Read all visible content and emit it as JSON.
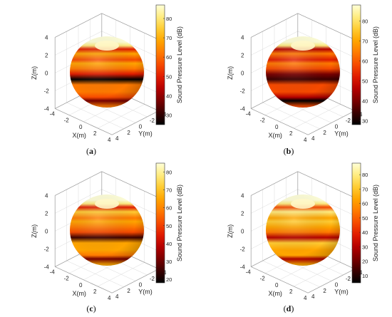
{
  "colors": {
    "colormap": [
      "#000000",
      "#3a0000",
      "#7a0000",
      "#b40000",
      "#e01b00",
      "#f64a00",
      "#ff7a00",
      "#ffa500",
      "#ffcc33",
      "#ffec80",
      "#ffffd8"
    ],
    "axis": "#333333",
    "grid": "#d9d9d9"
  },
  "chart_data": [
    {
      "type": "surface3d",
      "panel_label": "a",
      "colorbar_label": "Sound Pressure Level (dB)",
      "clim": [
        25,
        87
      ],
      "colorbar_ticks": [
        30,
        40,
        50,
        60,
        70,
        80
      ],
      "xlabel": "X(m)",
      "ylabel": "Y(m)",
      "zlabel": "Z(m)",
      "xticks": [
        -4,
        -2,
        0,
        2,
        4
      ],
      "yticks": [
        -4,
        -2,
        0,
        2,
        4
      ],
      "zticks": [
        -4,
        -2,
        0,
        2,
        4
      ],
      "xlim": [
        -4,
        4
      ],
      "ylim": [
        -4,
        4
      ],
      "zlim": [
        -4,
        4
      ],
      "grid": true,
      "spl_vs_height": [
        [
          3.6,
          86
        ],
        [
          3.2,
          80
        ],
        [
          2.8,
          48
        ],
        [
          2.3,
          70
        ],
        [
          1.6,
          56
        ],
        [
          1.2,
          68
        ],
        [
          0.6,
          60
        ],
        [
          0.0,
          52
        ],
        [
          -0.6,
          28
        ],
        [
          -1.2,
          65
        ],
        [
          -2.0,
          62
        ],
        [
          -2.6,
          58
        ],
        [
          -3.0,
          35
        ],
        [
          -3.6,
          64
        ]
      ]
    },
    {
      "type": "surface3d",
      "panel_label": "b",
      "colorbar_label": "Sound Pressure Level (dB)",
      "clim": [
        28,
        88
      ],
      "colorbar_ticks": [
        30,
        40,
        50,
        60,
        70,
        80
      ],
      "xlabel": "X(m)",
      "ylabel": "Y(m)",
      "zlabel": "Z(m)",
      "xticks": [
        -4,
        -2,
        0,
        2,
        4
      ],
      "yticks": [
        -4,
        -2,
        0,
        2,
        4
      ],
      "zticks": [
        -4,
        -2,
        0,
        2,
        4
      ],
      "xlim": [
        -4,
        4
      ],
      "ylim": [
        -4,
        4
      ],
      "zlim": [
        -4,
        4
      ],
      "grid": true,
      "spl_vs_height": [
        [
          3.6,
          88
        ],
        [
          3.2,
          80
        ],
        [
          2.8,
          45
        ],
        [
          2.3,
          66
        ],
        [
          1.6,
          50
        ],
        [
          1.2,
          64
        ],
        [
          0.6,
          56
        ],
        [
          0.0,
          38
        ],
        [
          -0.6,
          32
        ],
        [
          -1.2,
          60
        ],
        [
          -2.0,
          56
        ],
        [
          -2.6,
          48
        ],
        [
          -3.0,
          30
        ],
        [
          -3.6,
          58
        ]
      ]
    },
    {
      "type": "surface3d",
      "panel_label": "c",
      "colorbar_label": "Sound Pressure Level (dB)",
      "clim": [
        18,
        85
      ],
      "colorbar_ticks": [
        20,
        30,
        40,
        50,
        60,
        70,
        80
      ],
      "xlabel": "X(m)",
      "ylabel": "Y(m)",
      "zlabel": "Z(m)",
      "xticks": [
        -4,
        -2,
        0,
        2,
        4
      ],
      "yticks": [
        -4,
        -2,
        0,
        2,
        4
      ],
      "zticks": [
        -4,
        -2,
        0,
        2,
        4
      ],
      "xlim": [
        -4,
        4
      ],
      "ylim": [
        -4,
        4
      ],
      "zlim": [
        -4,
        4
      ],
      "grid": true,
      "spl_vs_height": [
        [
          3.6,
          85
        ],
        [
          3.2,
          78
        ],
        [
          2.8,
          48
        ],
        [
          2.3,
          70
        ],
        [
          1.6,
          56
        ],
        [
          1.2,
          66
        ],
        [
          0.6,
          60
        ],
        [
          0.0,
          52
        ],
        [
          -0.6,
          22
        ],
        [
          -1.2,
          64
        ],
        [
          -2.0,
          62
        ],
        [
          -2.6,
          56
        ],
        [
          -3.0,
          30
        ],
        [
          -3.6,
          62
        ]
      ]
    },
    {
      "type": "surface3d",
      "panel_label": "d",
      "colorbar_label": "Sound Pressure Level (dB)",
      "clim": [
        5,
        88
      ],
      "colorbar_ticks": [
        10,
        20,
        30,
        40,
        50,
        60,
        70,
        80
      ],
      "xlabel": "X(m)",
      "ylabel": "Y(m)",
      "zlabel": "Z(m)",
      "xticks": [
        -4,
        -2,
        0,
        2,
        4
      ],
      "yticks": [
        -4,
        -2,
        0,
        2,
        4
      ],
      "zticks": [
        -4,
        -2,
        0,
        2,
        4
      ],
      "xlim": [
        -4,
        4
      ],
      "ylim": [
        -4,
        4
      ],
      "zlim": [
        -4,
        4
      ],
      "grid": true,
      "spl_vs_height": [
        [
          3.6,
          88
        ],
        [
          3.2,
          80
        ],
        [
          2.8,
          50
        ],
        [
          2.3,
          76
        ],
        [
          1.6,
          60
        ],
        [
          1.2,
          72
        ],
        [
          0.6,
          66
        ],
        [
          0.0,
          58
        ],
        [
          -0.6,
          28
        ],
        [
          -1.2,
          68
        ],
        [
          -2.0,
          66
        ],
        [
          -2.6,
          62
        ],
        [
          -3.0,
          30
        ],
        [
          -3.6,
          66
        ]
      ]
    }
  ]
}
